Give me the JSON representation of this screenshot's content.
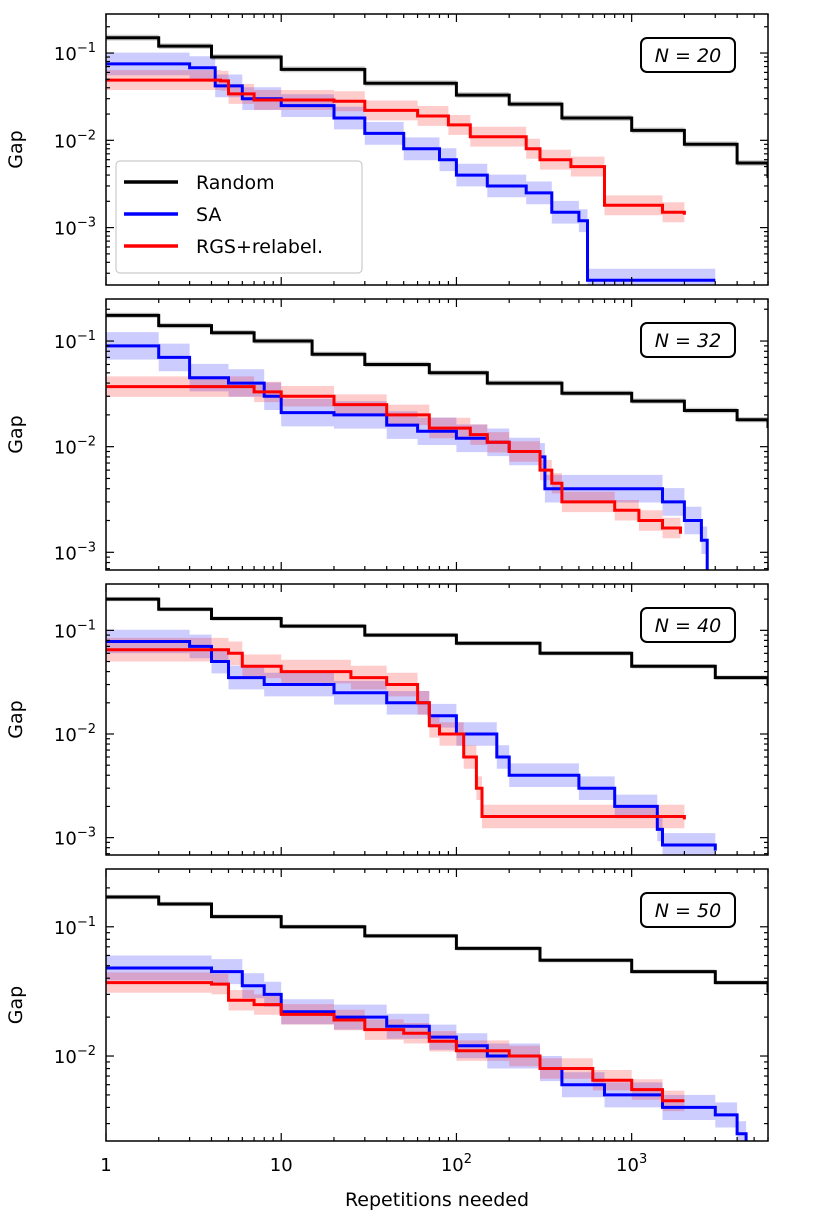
{
  "chart_data": {
    "type": "line",
    "xscale": "log",
    "yscale": "log",
    "xlim": [
      1,
      6000
    ],
    "xlabel": "Repetitions needed",
    "ylabel": "Gap",
    "x_ticks": [
      {
        "value": 1,
        "base": "1",
        "exp": ""
      },
      {
        "value": 10,
        "base": "10",
        "exp": ""
      },
      {
        "value": 100,
        "base": "10",
        "exp": "2"
      },
      {
        "value": 1000,
        "base": "10",
        "exp": "3"
      }
    ],
    "legend": {
      "location": "panel 1, center-left",
      "entries": [
        {
          "label": "Random",
          "color": "#000000"
        },
        {
          "label": "SA",
          "color": "#0000ff"
        },
        {
          "label": "RGS+relabel.",
          "color": "#ff0000"
        }
      ]
    },
    "panels": [
      {
        "label": "N = 20",
        "ylim": [
          0.00022,
          0.28
        ],
        "y_ticks": [
          {
            "value": 0.1,
            "base": "10",
            "exp": "−1"
          },
          {
            "value": 0.01,
            "base": "10",
            "exp": "−2"
          },
          {
            "value": 0.001,
            "base": "10",
            "exp": "−3"
          }
        ],
        "series": [
          {
            "name": "Random",
            "color": "#000000",
            "band_pct": 8,
            "points": [
              [
                1,
                0.15
              ],
              [
                2,
                0.12
              ],
              [
                4,
                0.09
              ],
              [
                10,
                0.065
              ],
              [
                30,
                0.045
              ],
              [
                100,
                0.033
              ],
              [
                200,
                0.026
              ],
              [
                400,
                0.018
              ],
              [
                1000,
                0.013
              ],
              [
                2000,
                0.009
              ],
              [
                4000,
                0.0055
              ],
              [
                6000,
                0.0037
              ]
            ]
          },
          {
            "name": "SA",
            "color": "#0000ff",
            "band_pct": 35,
            "points": [
              [
                1,
                0.075
              ],
              [
                3,
                0.068
              ],
              [
                4.2,
                0.042
              ],
              [
                6,
                0.03
              ],
              [
                10,
                0.025
              ],
              [
                20,
                0.018
              ],
              [
                30,
                0.012
              ],
              [
                50,
                0.008
              ],
              [
                80,
                0.006
              ],
              [
                100,
                0.004
              ],
              [
                150,
                0.003
              ],
              [
                250,
                0.0025
              ],
              [
                350,
                0.0015
              ],
              [
                500,
                0.0012
              ],
              [
                560,
                0.00025
              ],
              [
                3000,
                0.00025
              ]
            ]
          },
          {
            "name": "RGS+relabel.",
            "color": "#ff0000",
            "band_pct": 30,
            "points": [
              [
                1,
                0.049
              ],
              [
                4.5,
                0.048
              ],
              [
                5,
                0.034
              ],
              [
                7,
                0.029
              ],
              [
                20,
                0.028
              ],
              [
                30,
                0.022
              ],
              [
                60,
                0.019
              ],
              [
                90,
                0.015
              ],
              [
                120,
                0.011
              ],
              [
                200,
                0.011
              ],
              [
                250,
                0.008
              ],
              [
                300,
                0.006
              ],
              [
                450,
                0.005
              ],
              [
                700,
                0.0018
              ],
              [
                1500,
                0.0015
              ],
              [
                2000,
                0.0014
              ]
            ]
          }
        ]
      },
      {
        "label": "N = 32",
        "ylim": [
          0.00068,
          0.25
        ],
        "y_ticks": [
          {
            "value": 0.1,
            "base": "10",
            "exp": "−1"
          },
          {
            "value": 0.01,
            "base": "10",
            "exp": "−2"
          },
          {
            "value": 0.001,
            "base": "10",
            "exp": "−3"
          }
        ],
        "series": [
          {
            "name": "Random",
            "color": "#000000",
            "band_pct": 6,
            "points": [
              [
                1,
                0.175
              ],
              [
                2,
                0.14
              ],
              [
                4,
                0.12
              ],
              [
                7,
                0.1
              ],
              [
                15,
                0.075
              ],
              [
                30,
                0.06
              ],
              [
                70,
                0.05
              ],
              [
                150,
                0.04
              ],
              [
                400,
                0.032
              ],
              [
                1000,
                0.027
              ],
              [
                2000,
                0.022
              ],
              [
                4000,
                0.018
              ],
              [
                6000,
                0.015
              ]
            ]
          },
          {
            "name": "SA",
            "color": "#0000ff",
            "band_pct": 35,
            "points": [
              [
                1,
                0.09
              ],
              [
                2,
                0.07
              ],
              [
                3,
                0.045
              ],
              [
                5,
                0.04
              ],
              [
                8,
                0.03
              ],
              [
                10,
                0.021
              ],
              [
                20,
                0.02
              ],
              [
                40,
                0.016
              ],
              [
                60,
                0.014
              ],
              [
                100,
                0.012
              ],
              [
                150,
                0.011
              ],
              [
                200,
                0.009
              ],
              [
                300,
                0.008
              ],
              [
                320,
                0.004
              ],
              [
                700,
                0.004
              ],
              [
                1500,
                0.003
              ],
              [
                2000,
                0.002
              ],
              [
                2500,
                0.0013
              ],
              [
                2700,
                0.00068
              ]
            ]
          },
          {
            "name": "RGS+relabel.",
            "color": "#ff0000",
            "band_pct": 25,
            "points": [
              [
                1,
                0.037
              ],
              [
                5,
                0.037
              ],
              [
                7,
                0.033
              ],
              [
                10,
                0.03
              ],
              [
                20,
                0.025
              ],
              [
                40,
                0.02
              ],
              [
                70,
                0.015
              ],
              [
                120,
                0.013
              ],
              [
                150,
                0.011
              ],
              [
                200,
                0.009
              ],
              [
                300,
                0.006
              ],
              [
                350,
                0.0045
              ],
              [
                400,
                0.003
              ],
              [
                800,
                0.0025
              ],
              [
                1100,
                0.002
              ],
              [
                1500,
                0.0017
              ],
              [
                1900,
                0.0015
              ]
            ]
          }
        ]
      },
      {
        "label": "N = 40",
        "ylim": [
          0.00068,
          0.28
        ],
        "y_ticks": [
          {
            "value": 0.1,
            "base": "10",
            "exp": "−1"
          },
          {
            "value": 0.01,
            "base": "10",
            "exp": "−2"
          },
          {
            "value": 0.001,
            "base": "10",
            "exp": "−3"
          }
        ],
        "series": [
          {
            "name": "Random",
            "color": "#000000",
            "band_pct": 5,
            "points": [
              [
                1,
                0.2
              ],
              [
                2,
                0.16
              ],
              [
                4,
                0.13
              ],
              [
                10,
                0.11
              ],
              [
                30,
                0.09
              ],
              [
                100,
                0.075
              ],
              [
                300,
                0.06
              ],
              [
                1000,
                0.045
              ],
              [
                3000,
                0.035
              ],
              [
                6000,
                0.029
              ]
            ]
          },
          {
            "name": "SA",
            "color": "#0000ff",
            "band_pct": 30,
            "points": [
              [
                1,
                0.078
              ],
              [
                3,
                0.07
              ],
              [
                4,
                0.05
              ],
              [
                5,
                0.035
              ],
              [
                8,
                0.03
              ],
              [
                20,
                0.025
              ],
              [
                40,
                0.02
              ],
              [
                70,
                0.015
              ],
              [
                100,
                0.01
              ],
              [
                170,
                0.006
              ],
              [
                200,
                0.004
              ],
              [
                500,
                0.003
              ],
              [
                800,
                0.002
              ],
              [
                1400,
                0.0012
              ],
              [
                1500,
                0.00085
              ],
              [
                3000,
                0.00075
              ]
            ]
          },
          {
            "name": "RGS+relabel.",
            "color": "#ff0000",
            "band_pct": 30,
            "points": [
              [
                1,
                0.065
              ],
              [
                5,
                0.06
              ],
              [
                6,
                0.045
              ],
              [
                10,
                0.04
              ],
              [
                25,
                0.035
              ],
              [
                40,
                0.03
              ],
              [
                60,
                0.02
              ],
              [
                70,
                0.012
              ],
              [
                80,
                0.01
              ],
              [
                110,
                0.006
              ],
              [
                130,
                0.003
              ],
              [
                140,
                0.0016
              ],
              [
                2000,
                0.0015
              ]
            ]
          }
        ]
      },
      {
        "label": "N = 50",
        "ylim": [
          0.0022,
          0.28
        ],
        "y_ticks": [
          {
            "value": 0.1,
            "base": "10",
            "exp": "−1"
          },
          {
            "value": 0.01,
            "base": "10",
            "exp": "−2"
          }
        ],
        "series": [
          {
            "name": "Random",
            "color": "#000000",
            "band_pct": 4,
            "points": [
              [
                1,
                0.17
              ],
              [
                2,
                0.15
              ],
              [
                4,
                0.12
              ],
              [
                10,
                0.1
              ],
              [
                30,
                0.085
              ],
              [
                100,
                0.068
              ],
              [
                300,
                0.055
              ],
              [
                1000,
                0.045
              ],
              [
                3000,
                0.037
              ],
              [
                6000,
                0.031
              ]
            ]
          },
          {
            "name": "SA",
            "color": "#0000ff",
            "band_pct": 25,
            "points": [
              [
                1,
                0.048
              ],
              [
                4,
                0.045
              ],
              [
                6,
                0.035
              ],
              [
                8,
                0.03
              ],
              [
                10,
                0.022
              ],
              [
                20,
                0.02
              ],
              [
                40,
                0.017
              ],
              [
                70,
                0.014
              ],
              [
                100,
                0.012
              ],
              [
                150,
                0.01
              ],
              [
                300,
                0.008
              ],
              [
                400,
                0.006
              ],
              [
                700,
                0.005
              ],
              [
                1200,
                0.005
              ],
              [
                1500,
                0.004
              ],
              [
                3000,
                0.0035
              ],
              [
                4000,
                0.0025
              ],
              [
                4500,
                0.0022
              ]
            ]
          },
          {
            "name": "RGS+relabel.",
            "color": "#ff0000",
            "band_pct": 20,
            "points": [
              [
                1,
                0.037
              ],
              [
                4,
                0.036
              ],
              [
                5,
                0.027
              ],
              [
                7,
                0.025
              ],
              [
                10,
                0.021
              ],
              [
                20,
                0.019
              ],
              [
                30,
                0.016
              ],
              [
                50,
                0.015
              ],
              [
                70,
                0.013
              ],
              [
                100,
                0.011
              ],
              [
                200,
                0.01
              ],
              [
                300,
                0.008
              ],
              [
                600,
                0.0065
              ],
              [
                1000,
                0.0055
              ],
              [
                1500,
                0.0045
              ],
              [
                2000,
                0.0045
              ]
            ]
          }
        ]
      }
    ]
  }
}
